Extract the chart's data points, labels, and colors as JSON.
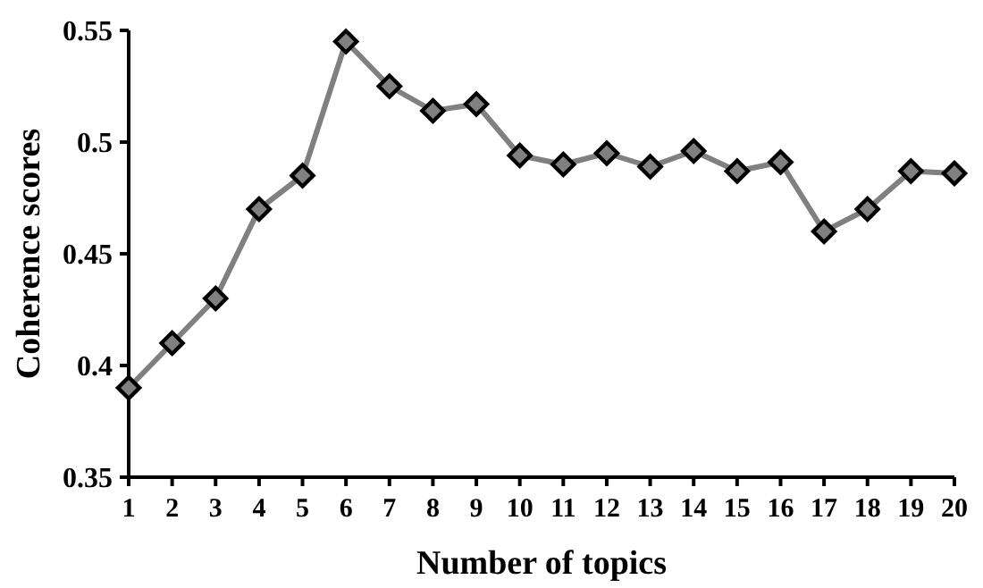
{
  "chart_data": {
    "type": "line",
    "xlabel": "Number of topics",
    "ylabel": "Coherence scores",
    "x": [
      1,
      2,
      3,
      4,
      5,
      6,
      7,
      8,
      9,
      10,
      11,
      12,
      13,
      14,
      15,
      16,
      17,
      18,
      19,
      20
    ],
    "xlim": [
      1,
      20
    ],
    "xticks": [
      1,
      2,
      3,
      4,
      5,
      6,
      7,
      8,
      9,
      10,
      11,
      12,
      13,
      14,
      15,
      16,
      17,
      18,
      19,
      20
    ],
    "series": [
      {
        "color": "#808080",
        "values": [
          0.39,
          0.41,
          0.43,
          0.47,
          0.485,
          0.545,
          0.525,
          0.514,
          0.517,
          0.494,
          0.49,
          0.495,
          0.489,
          0.496,
          0.487,
          0.491,
          0.46,
          0.47,
          0.487,
          0.486
        ]
      }
    ],
    "ylim": [
      0.35,
      0.55
    ],
    "yticks": [
      {
        "value": 0.35,
        "label": "0.35"
      },
      {
        "value": 0.4,
        "label": "0.4"
      },
      {
        "value": 0.45,
        "label": "0.45"
      },
      {
        "value": 0.5,
        "label": "0.5"
      },
      {
        "value": 0.55,
        "label": "0.55"
      }
    ],
    "marker": "diamond",
    "line_style": "solid",
    "grid": false
  }
}
